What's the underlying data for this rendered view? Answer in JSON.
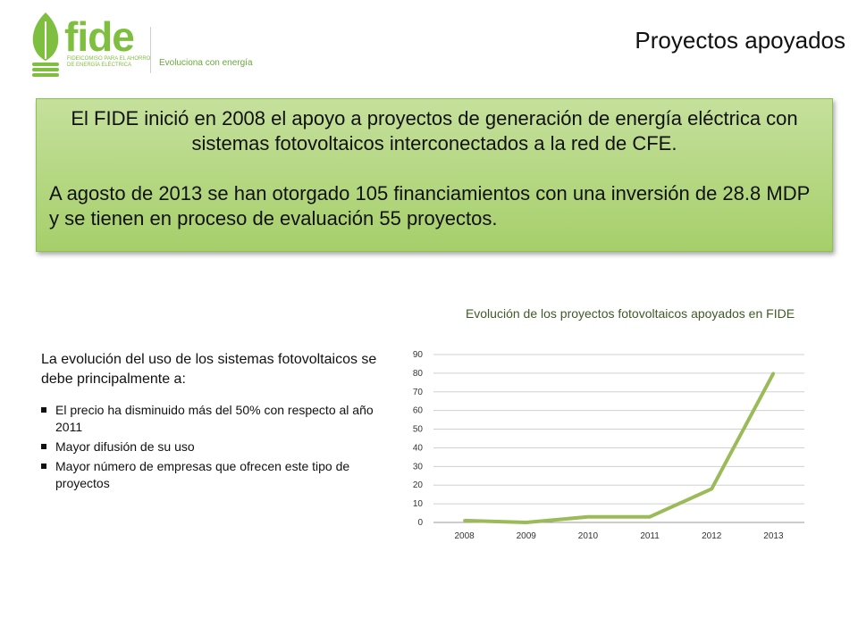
{
  "logo": {
    "name": "fide",
    "subtitle": "FIDEICOMISO PARA EL AHORRO DE ENERGÍA ELÉCTRICA",
    "tagline": "Evoluciona con energía"
  },
  "header": {
    "title": "Proyectos apoyados"
  },
  "summary": {
    "paragraph1": "El FIDE inició en 2008 el apoyo a proyectos de generación de energía eléctrica con sistemas fotovoltaicos interconectados a la red de CFE.",
    "paragraph2": "A agosto de 2013 se han otorgado 105 financiamientos con una inversión de 28.8 MDP y se tienen en proceso de evaluación 55 proyectos."
  },
  "reasons": {
    "intro": "La evolución del uso de los sistemas fotovoltaicos se debe principalmente a:",
    "items": [
      "El precio ha disminuido más del 50% con respecto al año 2011",
      "Mayor difusión de su uso",
      "Mayor número de empresas que ofrecen este tipo de proyectos"
    ]
  },
  "colors": {
    "brand_green": "#7fbf3f",
    "line_green": "#9bbb59",
    "box_green": "#b8d88a"
  },
  "chart_data": {
    "type": "line",
    "title": "Evolución de los proyectos fotovoltaicos apoyados en FIDE",
    "categories": [
      "2008",
      "2009",
      "2010",
      "2011",
      "2012",
      "2013"
    ],
    "series": [
      {
        "values": [
          1,
          0,
          3,
          3,
          18,
          80
        ]
      }
    ],
    "ylim": [
      0,
      90
    ],
    "yticks": [
      0,
      10,
      20,
      30,
      40,
      50,
      60,
      70,
      80,
      90
    ],
    "grid": true,
    "legend": "none"
  }
}
